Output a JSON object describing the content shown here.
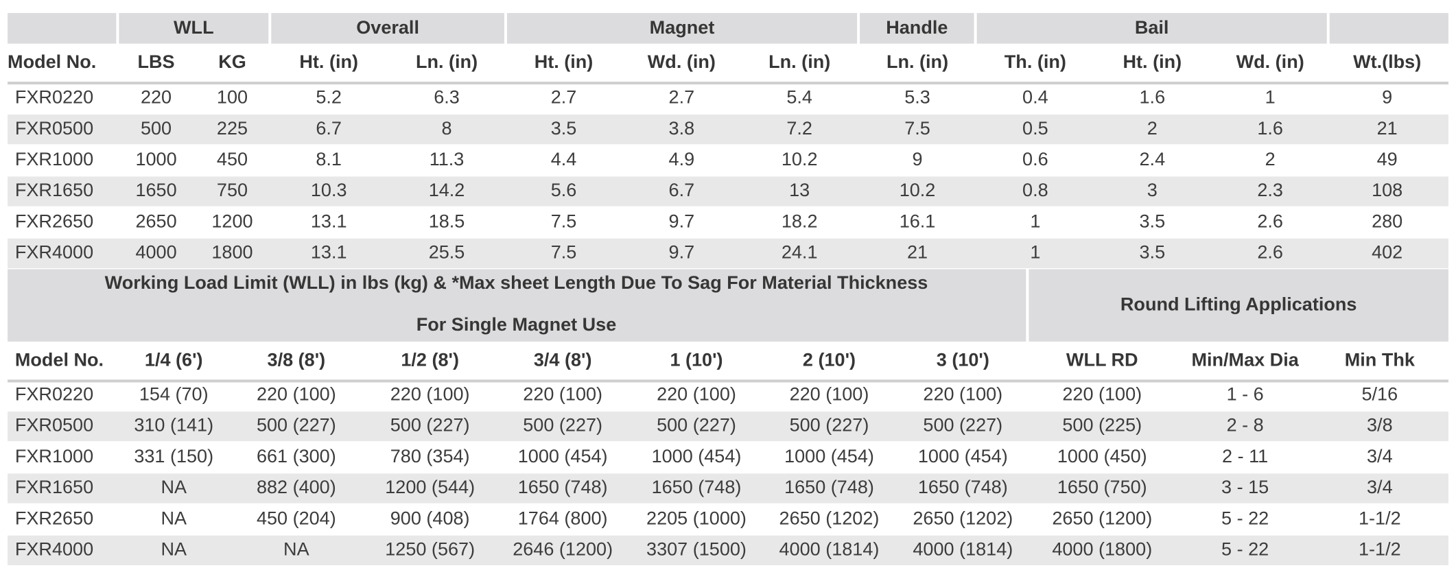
{
  "table1": {
    "group_headers": [
      "WLL",
      "Overall",
      "Magnet",
      "Handle",
      "Bail"
    ],
    "columns": [
      "Model No.",
      "LBS",
      "KG",
      "Ht. (in)",
      "Ln. (in)",
      "Ht. (in)",
      "Wd. (in)",
      "Ln. (in)",
      "Ln. (in)",
      "Th. (in)",
      "Ht. (in)",
      "Wd. (in)",
      "Wt.(lbs)"
    ],
    "rows": [
      [
        "FXR0220",
        "220",
        "100",
        "5.2",
        "6.3",
        "2.7",
        "2.7",
        "5.4",
        "5.3",
        "0.4",
        "1.6",
        "1",
        "9"
      ],
      [
        "FXR0500",
        "500",
        "225",
        "6.7",
        "8",
        "3.5",
        "3.8",
        "7.2",
        "7.5",
        "0.5",
        "2",
        "1.6",
        "21"
      ],
      [
        "FXR1000",
        "1000",
        "450",
        "8.1",
        "11.3",
        "4.4",
        "4.9",
        "10.2",
        "9",
        "0.6",
        "2.4",
        "2",
        "49"
      ],
      [
        "FXR1650",
        "1650",
        "750",
        "10.3",
        "14.2",
        "5.6",
        "6.7",
        "13",
        "10.2",
        "0.8",
        "3",
        "2.3",
        "108"
      ],
      [
        "FXR2650",
        "2650",
        "1200",
        "13.1",
        "18.5",
        "7.5",
        "9.7",
        "18.2",
        "16.1",
        "1",
        "3.5",
        "2.6",
        "280"
      ],
      [
        "FXR4000",
        "4000",
        "1800",
        "13.1",
        "25.5",
        "7.5",
        "9.7",
        "24.1",
        "21",
        "1",
        "3.5",
        "2.6",
        "402"
      ]
    ]
  },
  "table2": {
    "group_headers": [
      "Working Load Limit (WLL) in lbs (kg) & *Max sheet Length Due To Sag For Material Thickness",
      "For Single Magnet Use",
      "Round Lifting Applications"
    ],
    "columns": [
      "Model No.",
      "1/4 (6')",
      "3/8 (8')",
      "1/2 (8')",
      "3/4 (8')",
      "1 (10')",
      "2 (10')",
      "3 (10')",
      "WLL RD",
      "Min/Max Dia",
      "Min Thk"
    ],
    "rows": [
      [
        "FXR0220",
        "154 (70)",
        "220 (100)",
        "220 (100)",
        "220 (100)",
        "220 (100)",
        "220 (100)",
        "220 (100)",
        "220 (100)",
        "1 - 6",
        "5/16"
      ],
      [
        "FXR0500",
        "310 (141)",
        "500 (227)",
        "500 (227)",
        "500 (227)",
        "500 (227)",
        "500 (227)",
        "500 (227)",
        "500 (225)",
        "2 - 8",
        "3/8"
      ],
      [
        "FXR1000",
        "331 (150)",
        "661 (300)",
        "780 (354)",
        "1000 (454)",
        "1000 (454)",
        "1000 (454)",
        "1000 (454)",
        "1000 (450)",
        "2 - 11",
        "3/4"
      ],
      [
        "FXR1650",
        "NA",
        "882 (400)",
        "1200 (544)",
        "1650 (748)",
        "1650 (748)",
        "1650 (748)",
        "1650 (748)",
        "1650 (750)",
        "3 - 15",
        "3/4"
      ],
      [
        "FXR2650",
        "NA",
        "450 (204)",
        "900 (408)",
        "1764 (800)",
        "2205 (1000)",
        "2650 (1202)",
        "2650 (1202)",
        "2650 (1200)",
        "5 - 22",
        "1-1/2"
      ],
      [
        "FXR4000",
        "NA",
        "NA",
        "1250 (567)",
        "2646 (1200)",
        "3307 (1500)",
        "4000 (1814)",
        "4000 (1814)",
        "4000 (1800)",
        "5 - 22",
        "1-1/2"
      ]
    ]
  }
}
